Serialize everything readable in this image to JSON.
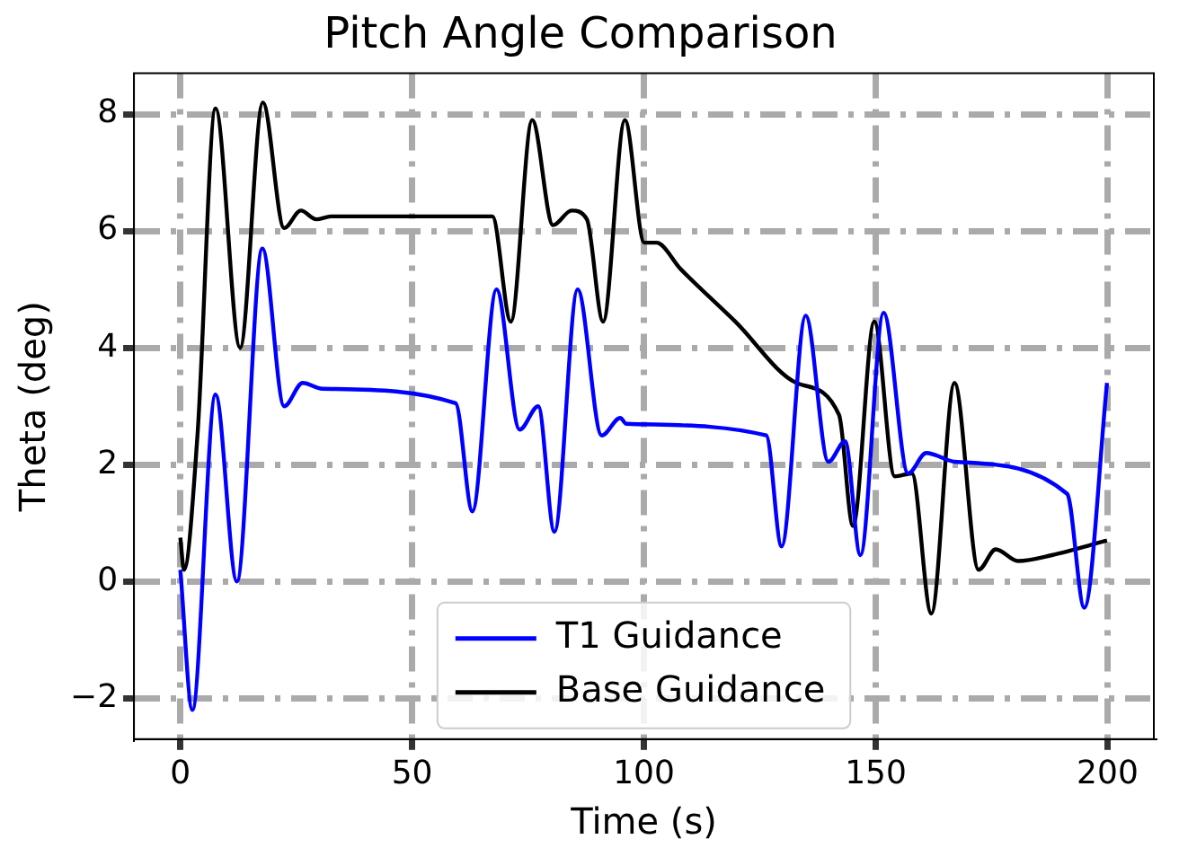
{
  "chart_data": {
    "type": "line",
    "title": "Pitch Angle Comparison",
    "xlabel": "Time (s)",
    "ylabel": "Theta (deg)",
    "xlim": [
      -10,
      210
    ],
    "ylim": [
      -2.7,
      8.7
    ],
    "xticks": [
      0,
      50,
      100,
      150,
      200
    ],
    "yticks": [
      -2,
      0,
      2,
      4,
      6,
      8
    ],
    "grid": true,
    "legend": "bottom",
    "line_style": "solid",
    "marker": "none",
    "series": [
      {
        "name": "T1 Guidance",
        "color": "#0000ff",
        "x": [
          0,
          2.6,
          7.6,
          12.2,
          17.7,
          22.4,
          26.4,
          30.6,
          59.4,
          63,
          68.2,
          73.2,
          77.2,
          80.7,
          85.7,
          90.9,
          94.9,
          96.2,
          126.4,
          129.7,
          134.9,
          139.8,
          143.4,
          146.7,
          151.7,
          157,
          160.9,
          167,
          191.3,
          195,
          199.9
        ],
        "values": [
          0.2,
          -2.2,
          3.2,
          0,
          5.7,
          3,
          3.4,
          3.3,
          3.05,
          1.2,
          5,
          2.6,
          3,
          0.85,
          5,
          2.5,
          2.8,
          2.7,
          2.5,
          0.6,
          4.55,
          2.05,
          2.4,
          0.45,
          4.6,
          1.85,
          2.2,
          2.05,
          1.5,
          -0.45,
          3.4
        ]
      },
      {
        "name": "Base Guidance",
        "color": "#000000",
        "x": [
          0,
          0.8,
          3.7,
          7.6,
          12.9,
          17.8,
          22.4,
          26,
          29.3,
          32.5,
          67.3,
          71.3,
          75.9,
          80.4,
          84.4,
          87.7,
          91.2,
          95.9,
          100.1,
          102.7,
          107.9,
          119.7,
          132.9,
          142.1,
          145.1,
          149.7,
          154.1,
          157.8,
          162,
          167,
          172.2,
          175.9,
          180.7,
          188,
          199.9
        ],
        "values": [
          0.75,
          0.2,
          2.5,
          8.1,
          4,
          8.2,
          6.05,
          6.35,
          6.2,
          6.25,
          6.25,
          4.45,
          7.9,
          6.1,
          6.35,
          6.2,
          4.45,
          7.9,
          5.8,
          5.8,
          5.35,
          4.45,
          3.4,
          2.85,
          0.95,
          4.45,
          1.8,
          1.85,
          -0.55,
          3.4,
          0.2,
          0.55,
          0.35,
          0.45,
          0.7
        ]
      }
    ]
  }
}
